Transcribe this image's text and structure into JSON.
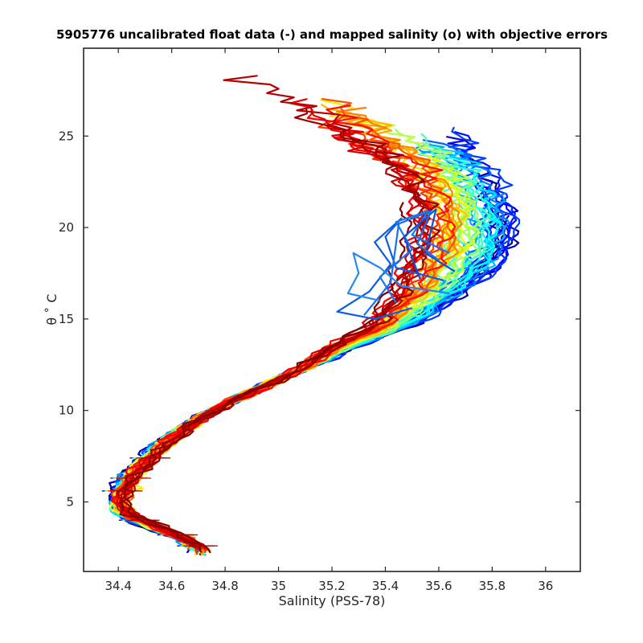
{
  "chart_data": {
    "type": "line",
    "title": "5905776 uncalibrated float data (-) and mapped salinity (o) with objective errors",
    "xlabel": "Salinity (PSS-78)",
    "ylabel": "θ ˚ C",
    "xlim": [
      34.27,
      36.13
    ],
    "ylim": [
      1.2,
      29.8
    ],
    "xticks": [
      34.4,
      34.6,
      34.8,
      35,
      35.2,
      35.4,
      35.6,
      35.8,
      36
    ],
    "xtick_labels": [
      "34.4",
      "34.6",
      "34.8",
      "35",
      "35.2",
      "35.4",
      "35.6",
      "35.8",
      "36"
    ],
    "yticks": [
      5,
      10,
      15,
      20,
      25
    ],
    "ytick_labels": [
      "5",
      "10",
      "15",
      "20",
      "25"
    ],
    "grid": false,
    "colormap": "jet",
    "colormap_stops": [
      "#00007f",
      "#0000ff",
      "#007fff",
      "#00ffff",
      "#7fff7f",
      "#ffff00",
      "#ff7f00",
      "#ff0000",
      "#7f0000"
    ],
    "profile_count": 60,
    "reference_profile": {
      "salinity": [
        34.71,
        34.69,
        34.65,
        34.58,
        34.5,
        34.43,
        34.4,
        34.41,
        34.45,
        34.52,
        34.6,
        34.7,
        34.82,
        34.93,
        35.03,
        35.13,
        35.23,
        35.33,
        35.43,
        35.5,
        35.56,
        35.62,
        35.66,
        35.7,
        35.71,
        35.7,
        35.67
      ],
      "theta": [
        2.2,
        2.6,
        3.0,
        3.4,
        3.8,
        4.3,
        5.0,
        5.7,
        6.5,
        7.5,
        8.5,
        9.5,
        10.5,
        11.2,
        11.9,
        12.6,
        13.4,
        14.0,
        14.7,
        15.5,
        16.3,
        17.2,
        18.0,
        19.0,
        20.0,
        21.0,
        22.0
      ]
    },
    "excursions": [
      {
        "salinity": [
          35.62,
          35.44,
          35.4,
          35.46,
          35.36,
          35.42,
          35.34,
          35.22,
          35.36,
          35.5
        ],
        "theta": [
          17.1,
          17.8,
          19.5,
          20.5,
          19.2,
          18.0,
          16.5,
          15.4,
          15.0,
          15.6
        ],
        "color": "#0b5ce6"
      },
      {
        "salinity": [
          35.64,
          35.5,
          35.56,
          35.44,
          35.5,
          35.38,
          35.44
        ],
        "theta": [
          18.6,
          19.6,
          20.9,
          20.3,
          18.8,
          17.3,
          15.9
        ],
        "color": "#1a78f0"
      },
      {
        "salinity": [
          35.66,
          35.55,
          35.59,
          35.47,
          35.53
        ],
        "theta": [
          17.6,
          18.6,
          21.0,
          19.5,
          17.2
        ],
        "color": "#0a50d8"
      },
      {
        "salinity": [
          35.6,
          35.52,
          35.57,
          35.45,
          35.42,
          35.32
        ],
        "theta": [
          18.2,
          19.1,
          20.9,
          20.2,
          17.0,
          15.2
        ],
        "color": "#1670ee"
      },
      {
        "salinity": [
          35.64,
          35.46,
          35.38,
          35.28,
          35.3,
          35.26,
          35.38
        ],
        "theta": [
          16.4,
          16.8,
          17.8,
          18.6,
          17.5,
          16.4,
          16.0
        ],
        "color": "#2788f2"
      }
    ]
  }
}
